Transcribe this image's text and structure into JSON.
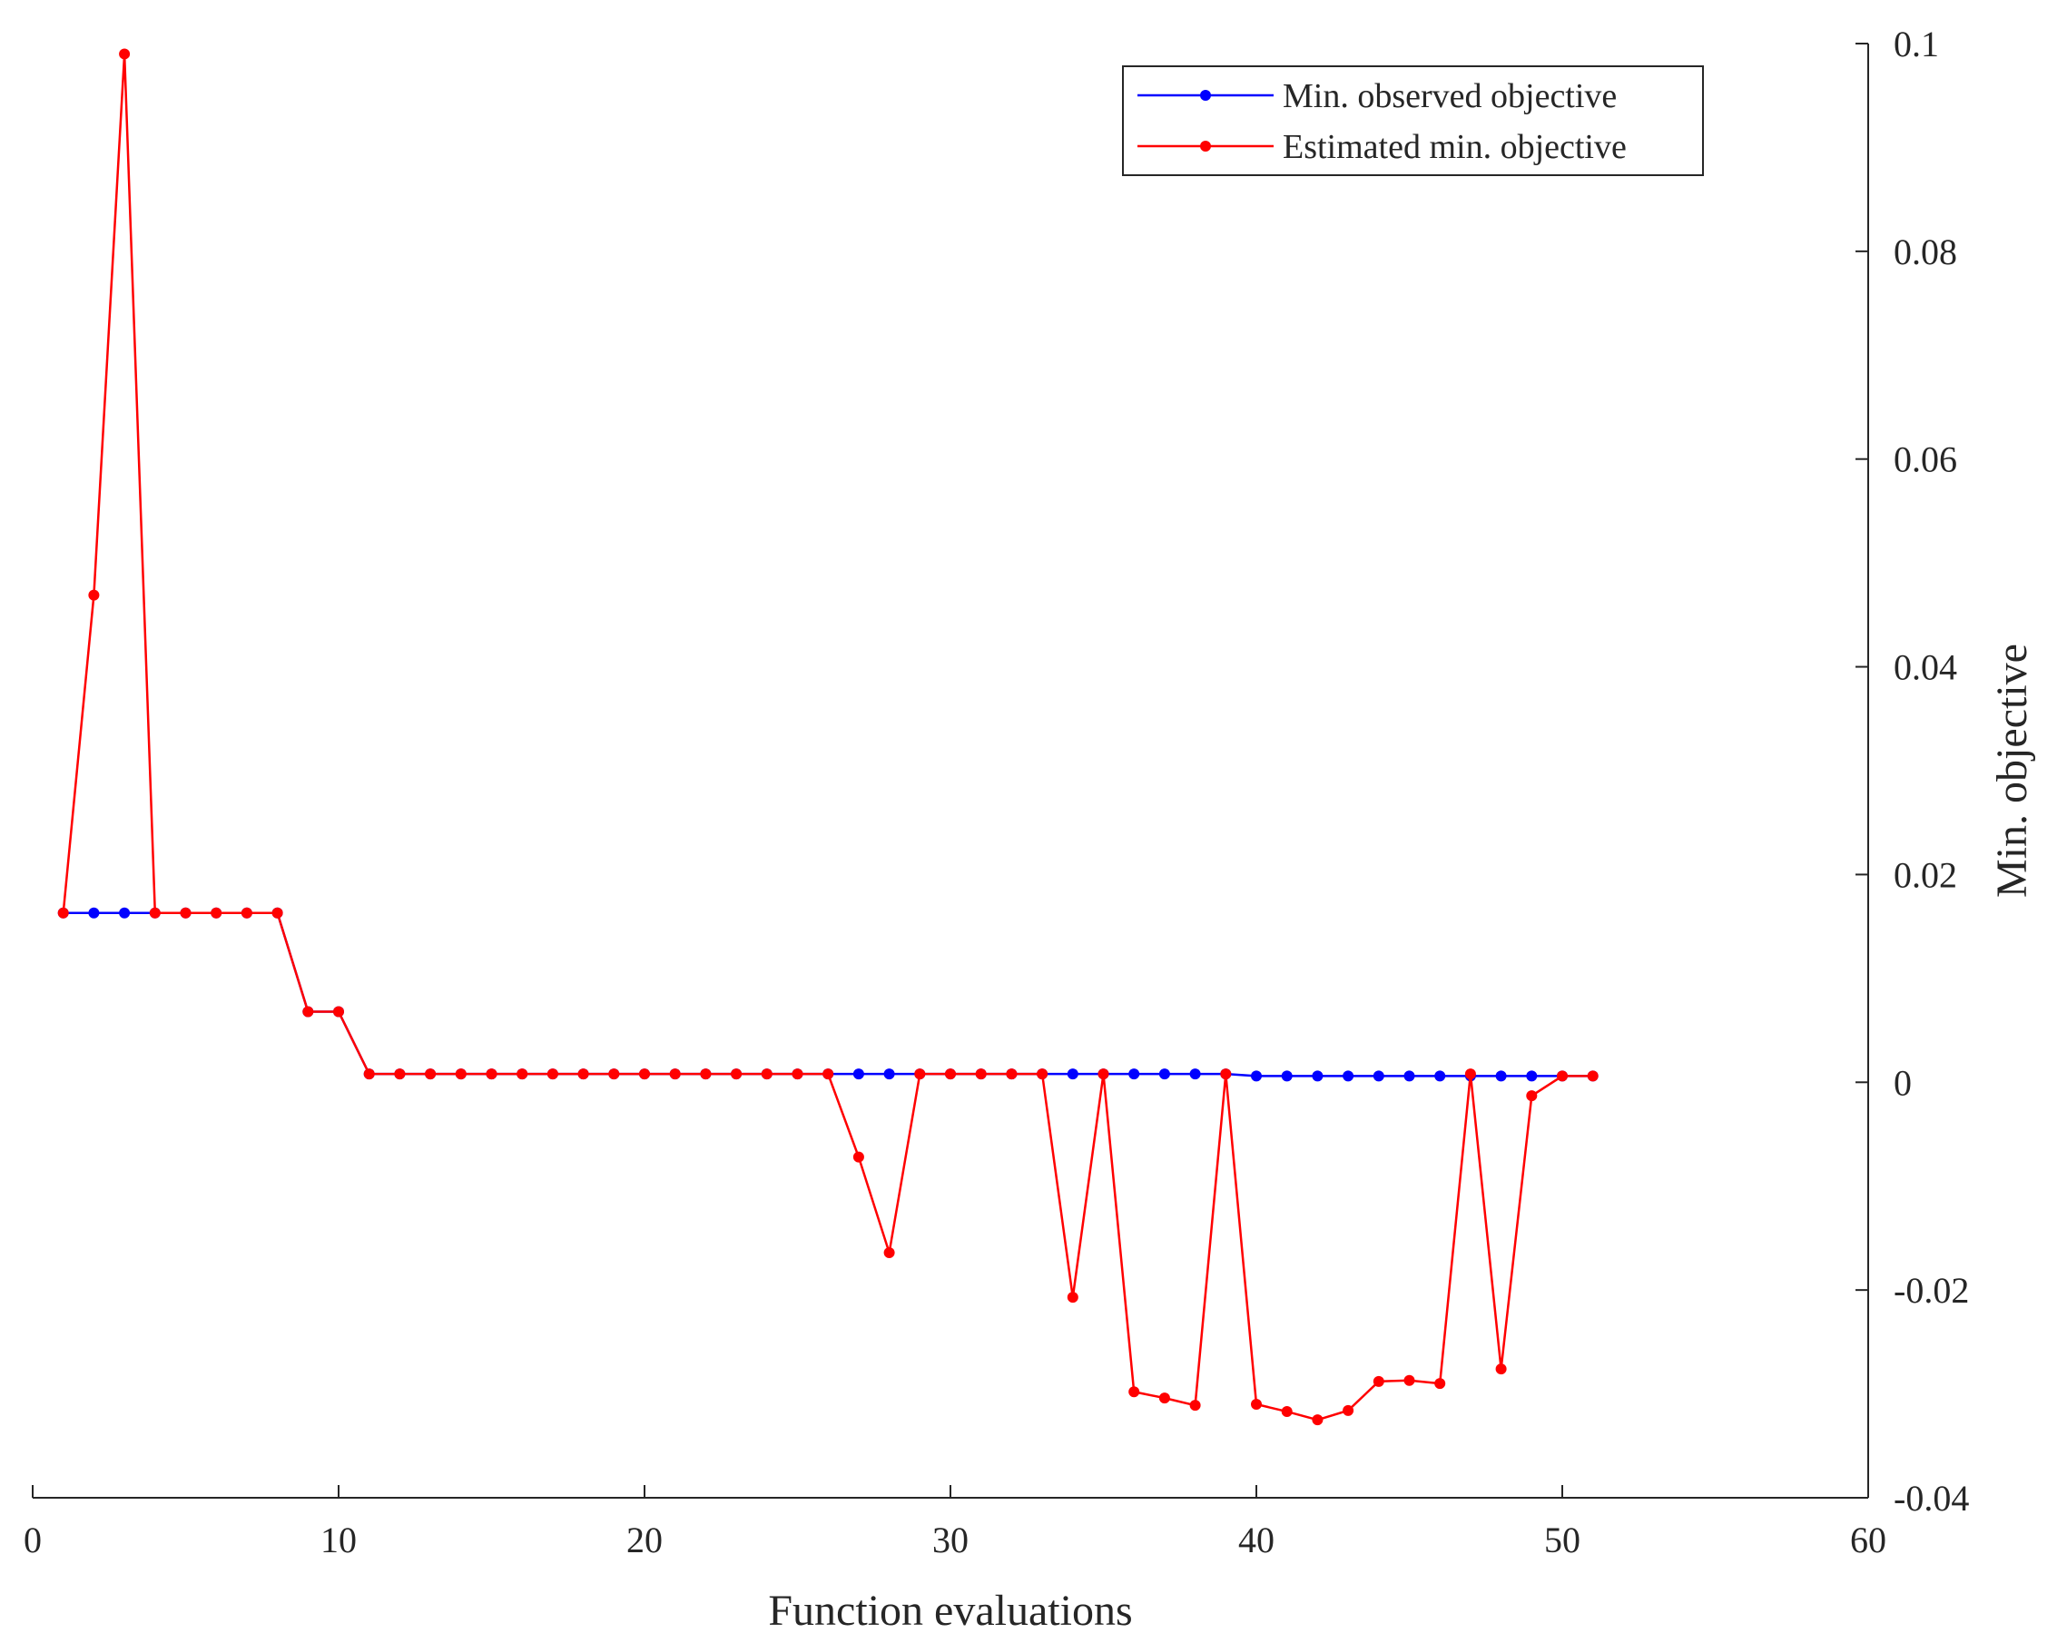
{
  "chart_data": {
    "type": "line",
    "xlabel": "Function evaluations",
    "ylabel": "Min. objective",
    "xlim": [
      0,
      60
    ],
    "ylim": [
      -0.04,
      0.1
    ],
    "xticks": [
      "0",
      "10",
      "20",
      "30",
      "40",
      "50",
      "60"
    ],
    "yticks": [
      "-0.04",
      "-0.02",
      "0",
      "0.02",
      "0.04",
      "0.06",
      "0.08",
      "0.1"
    ],
    "y_axis_position": "right",
    "grid": false,
    "legend_position": "top-right",
    "x": [
      1,
      2,
      3,
      4,
      5,
      6,
      7,
      8,
      9,
      10,
      11,
      12,
      13,
      14,
      15,
      16,
      17,
      18,
      19,
      20,
      21,
      22,
      23,
      24,
      25,
      26,
      27,
      28,
      29,
      30,
      31,
      32,
      33,
      34,
      35,
      36,
      37,
      38,
      39,
      40,
      41,
      42,
      43,
      44,
      45,
      46,
      47,
      48,
      49,
      50,
      51
    ],
    "series": [
      {
        "name": "Min. observed objective",
        "color": "#0000ff",
        "values": [
          0.0163,
          0.0163,
          0.0163,
          0.0163,
          0.0163,
          0.0163,
          0.0163,
          0.0163,
          0.0068,
          0.0068,
          0.0008,
          0.0008,
          0.0008,
          0.0008,
          0.0008,
          0.0008,
          0.0008,
          0.0008,
          0.0008,
          0.0008,
          0.0008,
          0.0008,
          0.0008,
          0.0008,
          0.0008,
          0.0008,
          0.0008,
          0.0008,
          0.0008,
          0.0008,
          0.0008,
          0.0008,
          0.0008,
          0.0008,
          0.0008,
          0.0008,
          0.0008,
          0.0008,
          0.0008,
          0.0006,
          0.0006,
          0.0006,
          0.0006,
          0.0006,
          0.0006,
          0.0006,
          0.0006,
          0.0006,
          0.0006,
          0.0006,
          0.0006
        ]
      },
      {
        "name": "Estimated min. objective",
        "color": "#ff0000",
        "values": [
          0.0163,
          0.0469,
          0.099,
          0.0163,
          0.0163,
          0.0163,
          0.0163,
          0.0163,
          0.0068,
          0.0068,
          0.0008,
          0.0008,
          0.0008,
          0.0008,
          0.0008,
          0.0008,
          0.0008,
          0.0008,
          0.0008,
          0.0008,
          0.0008,
          0.0008,
          0.0008,
          0.0008,
          0.0008,
          0.0008,
          -0.0072,
          -0.0164,
          0.0008,
          0.0008,
          0.0008,
          0.0008,
          0.0008,
          -0.0207,
          0.0008,
          -0.0298,
          -0.0304,
          -0.0311,
          0.0008,
          -0.031,
          -0.0317,
          -0.0325,
          -0.0316,
          -0.0288,
          -0.0287,
          -0.029,
          0.0008,
          -0.0276,
          -0.0013,
          0.0006,
          0.0006
        ]
      }
    ]
  }
}
